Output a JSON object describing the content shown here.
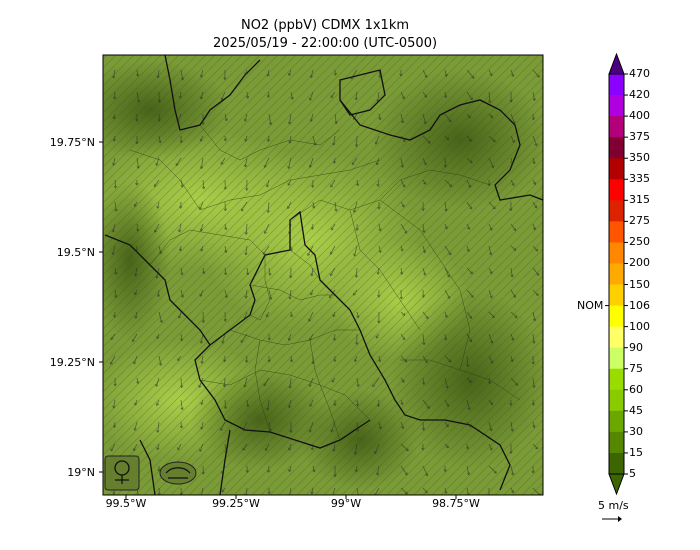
{
  "title": {
    "line1": "NO2 (ppbV) CDMX 1x1km",
    "line2": "2025/05/19 - 22:00:00 (UTC-0500)"
  },
  "axes": {
    "lat_labels": [
      "19.75°N",
      "19.5°N",
      "19.25°N",
      "19°N"
    ],
    "lon_labels": [
      "99.5°W",
      "99.25°W",
      "99°W",
      "98.75°W"
    ]
  },
  "colorbar": {
    "ticks": [
      "470",
      "420",
      "400",
      "375",
      "350",
      "335",
      "315",
      "275",
      "250",
      "200",
      "150",
      "106",
      "100",
      "90",
      "75",
      "60",
      "45",
      "30",
      "15",
      "5"
    ],
    "colors": [
      "#4b0082",
      "#8b00ff",
      "#b000e0",
      "#b3007a",
      "#7f0030",
      "#b20000",
      "#ff0000",
      "#dd2200",
      "#ff5500",
      "#ff8800",
      "#ffaa00",
      "#ffd000",
      "#ffff00",
      "#ffff66",
      "#ccff66",
      "#99dd00",
      "#88cc00",
      "#6aa800",
      "#558800",
      "#3e6600"
    ],
    "nom_label": "NOM",
    "nom_value": 106,
    "max_arrow_color": "#4b0082",
    "min_arrow_color": "#3e6600"
  },
  "wind": {
    "label": "5 m/s"
  },
  "map": {
    "base_color": "#7a9a3a",
    "dark_color": "#4e6a1e",
    "light_color": "#a8cc44",
    "logos": [
      "sedema-logo",
      "aire-logo"
    ]
  }
}
